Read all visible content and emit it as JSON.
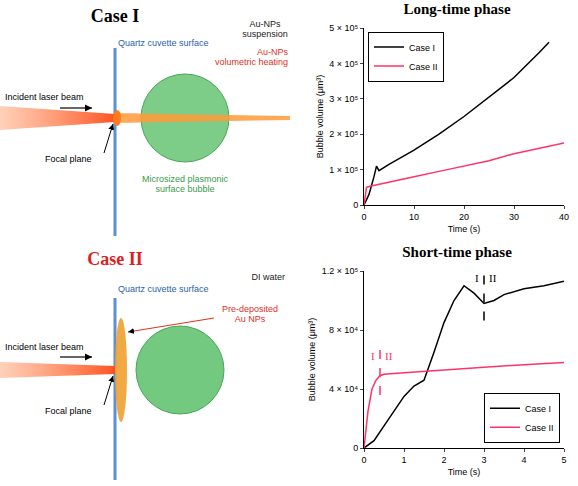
{
  "chart_data": [
    {
      "type": "line",
      "title": "Long-time phase",
      "x_label": "Time (s)",
      "y_label": "Bubble volume (μm³)",
      "series": [
        {
          "name": "Case I",
          "color": "#000000",
          "line_style": "solid",
          "x": [
            0,
            1,
            2,
            2.5,
            3,
            5,
            10,
            15,
            20,
            25,
            30,
            35,
            37
          ],
          "values": [
            0,
            30000,
            80000,
            110000,
            97000,
            115000,
            155000,
            200000,
            250000,
            305000,
            360000,
            430000,
            460000
          ]
        },
        {
          "name": "Case II",
          "color": "#ff3366",
          "line_style": "solid",
          "x": [
            0,
            0.3,
            0.5,
            1,
            5,
            10,
            15,
            20,
            25,
            30,
            35,
            40
          ],
          "values": [
            0,
            30000,
            50000,
            52000,
            65000,
            80000,
            95000,
            110000,
            125000,
            145000,
            160000,
            175000
          ]
        }
      ],
      "xlim": [
        0,
        40
      ],
      "xticks": [
        0,
        10,
        20,
        30,
        40
      ],
      "ylim": [
        0,
        500000
      ],
      "yticks": [
        0,
        {
          "value": 100000,
          "label": "1 × 10⁵"
        },
        {
          "value": 200000,
          "label": "2 × 10⁵"
        },
        {
          "value": 300000,
          "label": "3 × 10⁵"
        },
        {
          "value": 400000,
          "label": "4 × 10⁵"
        },
        {
          "value": 500000,
          "label": "5 × 10⁵"
        }
      ],
      "grid": false,
      "legend": "upper left"
    },
    {
      "type": "line",
      "title": "Short-time phase",
      "x_label": "Time (s)",
      "y_label": "Bubble volume (μm³)",
      "series": [
        {
          "name": "Case I",
          "color": "#000000",
          "line_style": "solid",
          "x": [
            0,
            0.25,
            0.5,
            0.75,
            1,
            1.25,
            1.5,
            1.75,
            2,
            2.25,
            2.5,
            2.75,
            3,
            3.25,
            3.5,
            4,
            4.5,
            5
          ],
          "values": [
            0,
            5000,
            15000,
            25000,
            35000,
            42000,
            46000,
            65000,
            85000,
            100000,
            110000,
            105000,
            98000,
            100000,
            104000,
            108000,
            110000,
            113000
          ]
        },
        {
          "name": "Case II",
          "color": "#ff3366",
          "line_style": "solid",
          "x": [
            0,
            0.1,
            0.2,
            0.3,
            0.4,
            0.5,
            1,
            2,
            3,
            4,
            5
          ],
          "values": [
            0,
            25000,
            40000,
            46000,
            49000,
            50000,
            51000,
            53000,
            55000,
            56500,
            58000
          ]
        }
      ],
      "phase_lines": [
        {
          "x": 3,
          "color": "#000000",
          "line_style": "dash",
          "labels": [
            "I",
            "II"
          ]
        },
        {
          "x": 0.4,
          "color": "#ff3366",
          "line_style": "dash",
          "labels": [
            "I",
            "II"
          ]
        }
      ],
      "xlim": [
        0,
        5
      ],
      "xticks": [
        0,
        1,
        2,
        3,
        4,
        5
      ],
      "ylim": [
        0,
        120000
      ],
      "yticks": [
        0,
        {
          "value": 40000,
          "label": "4 × 10⁴"
        },
        {
          "value": 80000,
          "label": "8 × 10⁴"
        },
        {
          "value": 120000,
          "label": "1.2 × 10⁵"
        }
      ],
      "grid": false,
      "legend": "lower right"
    }
  ],
  "diagrams": [
    {
      "title": "Case I",
      "cuvette": "Quartz cuvette surface",
      "medium": "Au-NPs suspension",
      "heating": "Au-NPs volumetric heating",
      "beam": "Incident laser beam",
      "focal_plane": "Focal plane",
      "bubble": "Microsized plasmonic surface bubble"
    },
    {
      "title": "Case II",
      "cuvette": "Quartz cuvette surface",
      "medium": "DI water",
      "particles": "Pre-deposited Au NPs",
      "beam": "Incident laser beam",
      "focal_plane": "Focal plane"
    }
  ]
}
